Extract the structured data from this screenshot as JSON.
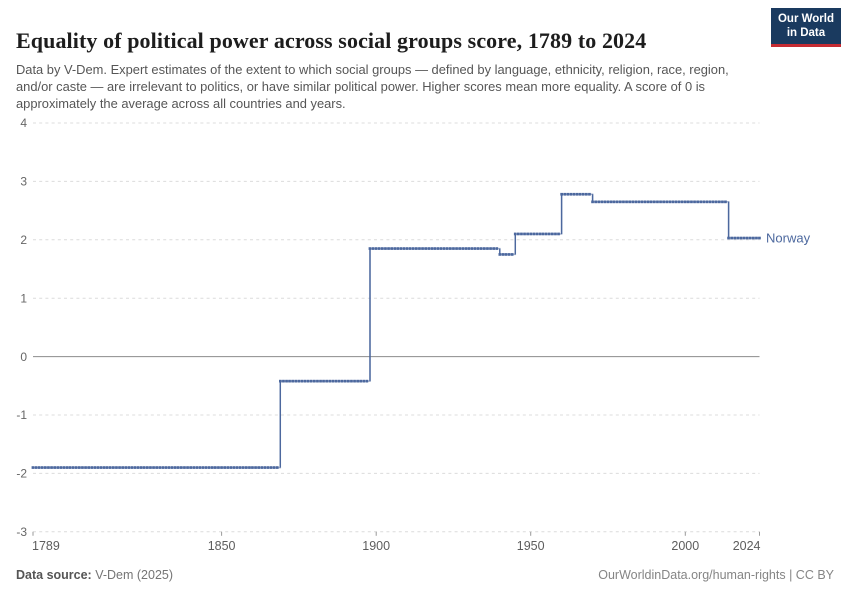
{
  "header": {
    "title": "Equality of political power across social groups score, 1789 to 2024",
    "subtitle": "Data by V-Dem. Expert estimates of the extent to which social groups — defined by language, ethnicity, religion, race, region, and/or caste — are irrelevant to politics, or have similar political power. Higher scores mean more equality. A score of 0 is approximately the average across all countries and years.",
    "logo": {
      "line1": "Our World",
      "line2": "in Data",
      "bg_color": "#1a3a5f",
      "accent_color": "#c52b32"
    }
  },
  "chart_data": {
    "type": "line",
    "title": "Equality of political power across social groups score, 1789 to 2024",
    "entity": "Norway",
    "xlabel": "",
    "ylabel": "",
    "x_range": [
      1789,
      2024
    ],
    "y_range": [
      -3,
      4
    ],
    "y_ticks": [
      4,
      3,
      2,
      1,
      0,
      -1,
      -2,
      -3
    ],
    "x_ticks": [
      1789,
      1850,
      1900,
      1950,
      2000,
      2024
    ],
    "grid": true,
    "legend_position": "right-end-of-line",
    "line_style": "step-with-yearly-markers",
    "colors": {
      "line": "#4c689e",
      "gridline": "#dcdcdc",
      "zero_line": "#8b8b8b",
      "axis_text": "#666666"
    },
    "series": [
      {
        "name": "Norway",
        "color": "#4c689e",
        "steps": [
          {
            "from": 1789,
            "to": 1868,
            "value": -1.9
          },
          {
            "from": 1869,
            "to": 1897,
            "value": -0.42
          },
          {
            "from": 1898,
            "to": 1939,
            "value": 1.85
          },
          {
            "from": 1940,
            "to": 1944,
            "value": 1.75
          },
          {
            "from": 1945,
            "to": 1959,
            "value": 2.1
          },
          {
            "from": 1960,
            "to": 1969,
            "value": 2.78
          },
          {
            "from": 1970,
            "to": 2013,
            "value": 2.65
          },
          {
            "from": 2014,
            "to": 2024,
            "value": 2.03
          }
        ]
      }
    ]
  },
  "footer": {
    "source_label": "Data source:",
    "source_value": " V-Dem (2025)",
    "right_text": "OurWorldinData.org/human-rights | CC BY"
  }
}
